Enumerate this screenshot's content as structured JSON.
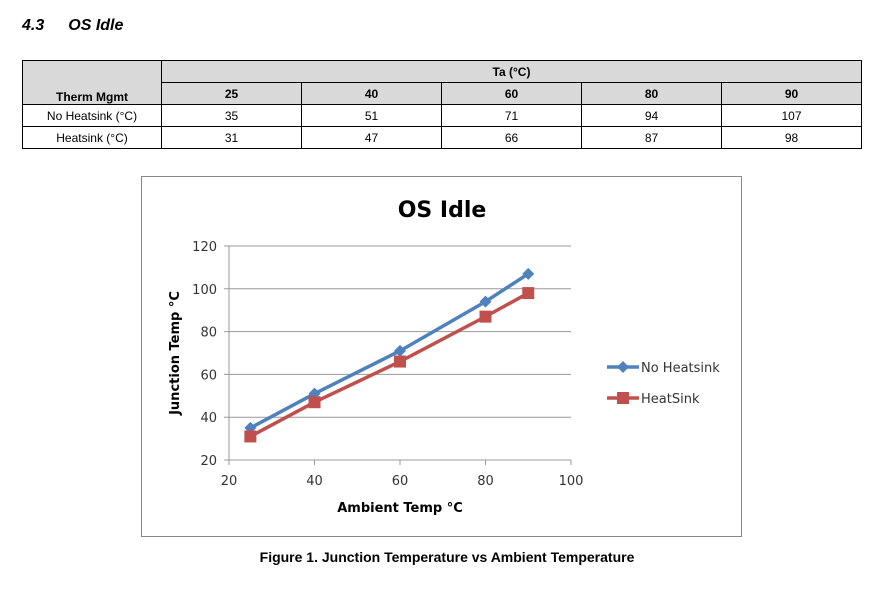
{
  "section": {
    "number": "4.3",
    "title": "OS Idle"
  },
  "table": {
    "row_header": "Therm Mgmt",
    "group_header": "Ta (°C)",
    "columns": [
      "25",
      "40",
      "60",
      "80",
      "90"
    ],
    "rows": [
      {
        "label": "No Heatsink (°C)",
        "values": [
          "35",
          "51",
          "71",
          "94",
          "107"
        ]
      },
      {
        "label": "Heatsink (°C)",
        "values": [
          "31",
          "47",
          "66",
          "87",
          "98"
        ]
      }
    ]
  },
  "chart_data": {
    "type": "line",
    "title": "OS Idle",
    "xlabel": "Ambient Temp °C",
    "ylabel": "Junction Temp °C",
    "xlim": [
      20,
      100
    ],
    "ylim": [
      20,
      120
    ],
    "xticks": [
      "20",
      "40",
      "60",
      "80",
      "100"
    ],
    "yticks": [
      "20",
      "40",
      "60",
      "80",
      "100",
      "120"
    ],
    "grid": true,
    "legend_position": "right",
    "x": [
      25,
      40,
      60,
      80,
      90
    ],
    "series": [
      {
        "name": "No Heatsink",
        "values": [
          35,
          51,
          71,
          94,
          107
        ],
        "color": "#4f81bd",
        "marker": "diamond"
      },
      {
        "name": "HeatSink",
        "values": [
          31,
          47,
          66,
          87,
          98
        ],
        "color": "#c0504d",
        "marker": "square"
      }
    ]
  },
  "caption": "Figure 1. Junction Temperature vs Ambient Temperature"
}
